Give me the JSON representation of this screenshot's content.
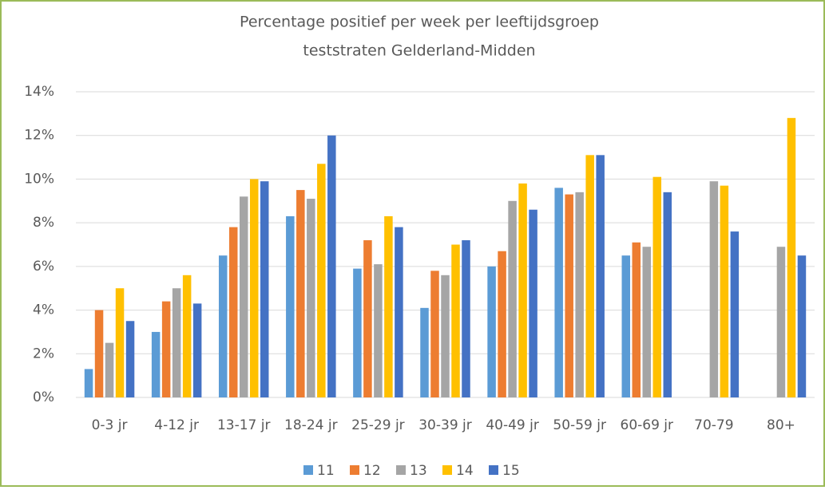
{
  "chart_data": {
    "type": "bar",
    "title": "Percentage positief per week per leeftijdsgroep",
    "subtitle": "teststraten Gelderland-Midden",
    "categories": [
      "0-3 jr",
      "4-12 jr",
      "13-17 jr",
      "18-24 jr",
      "25-29 jr",
      "30-39 jr",
      "40-49 jr",
      "50-59 jr",
      "60-69 jr",
      "70-79",
      "80+"
    ],
    "series": [
      {
        "name": "11",
        "color": "#5b9bd5",
        "values": [
          1.3,
          3.0,
          6.5,
          8.3,
          5.9,
          4.1,
          6.0,
          9.6,
          6.5,
          null,
          null
        ]
      },
      {
        "name": "12",
        "color": "#ed7d31",
        "values": [
          4.0,
          4.4,
          7.8,
          9.5,
          7.2,
          5.8,
          6.7,
          9.3,
          7.1,
          null,
          null
        ]
      },
      {
        "name": "13",
        "color": "#a5a5a5",
        "values": [
          2.5,
          5.0,
          9.2,
          9.1,
          6.1,
          5.6,
          9.0,
          9.4,
          6.9,
          9.9,
          6.9
        ]
      },
      {
        "name": "14",
        "color": "#ffc000",
        "values": [
          5.0,
          5.6,
          10.0,
          10.7,
          8.3,
          7.0,
          9.8,
          11.1,
          10.1,
          9.7,
          12.8
        ]
      },
      {
        "name": "15",
        "color": "#4472c4",
        "values": [
          3.5,
          4.3,
          9.9,
          12.0,
          7.8,
          7.2,
          8.6,
          11.1,
          9.4,
          7.6,
          6.5
        ]
      }
    ],
    "ylim": [
      0,
      14
    ],
    "yticks": [
      {
        "value": 0,
        "label": "0%"
      },
      {
        "value": 2,
        "label": "2%"
      },
      {
        "value": 4,
        "label": "4%"
      },
      {
        "value": 6,
        "label": "6%"
      },
      {
        "value": 8,
        "label": "8%"
      },
      {
        "value": 10,
        "label": "10%"
      },
      {
        "value": 12,
        "label": "12%"
      },
      {
        "value": 14,
        "label": "14%"
      }
    ],
    "grid": true,
    "legend": "bottom"
  }
}
